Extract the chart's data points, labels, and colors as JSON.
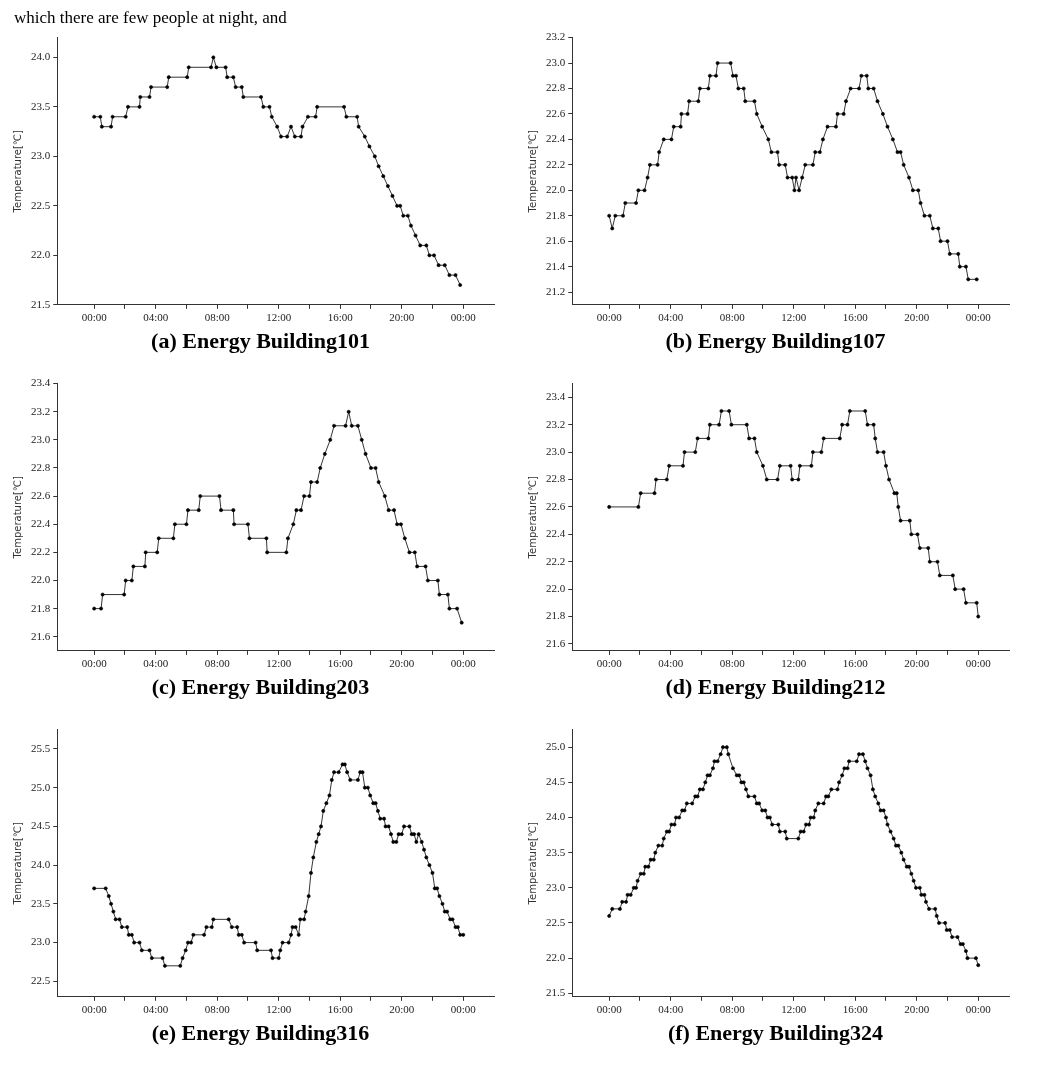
{
  "chart_data": [
    {
      "type": "line",
      "title": "(a) Energy Building101",
      "ylabel": "Temperature[℃]",
      "annotations": [
        "which there are few people at night, and"
      ],
      "color": "#000000",
      "marker": "circle",
      "x": [
        0,
        0.4,
        0.5,
        1.1,
        1.2,
        2.05,
        2.2,
        2.95,
        3.0,
        3.6,
        3.7,
        4.75,
        4.85,
        6.05,
        6.15,
        7.6,
        7.75,
        7.95,
        8.55,
        8.65,
        9.05,
        9.2,
        9.6,
        9.7,
        10.85,
        11.0,
        11.4,
        11.55,
        11.9,
        12.15,
        12.55,
        12.8,
        13.05,
        13.45,
        13.55,
        13.9,
        14.4,
        14.5,
        16.25,
        16.4,
        17.1,
        17.2,
        17.6,
        17.9,
        18.25,
        18.5,
        18.8,
        19.1,
        19.4,
        19.7,
        19.9,
        20.1,
        20.4,
        20.6,
        20.9,
        21.2,
        21.6,
        21.8,
        22.1,
        22.4,
        22.8,
        23.1,
        23.5,
        23.8
      ],
      "values": [
        23.4,
        23.4,
        23.3,
        23.3,
        23.4,
        23.4,
        23.5,
        23.5,
        23.6,
        23.6,
        23.7,
        23.7,
        23.8,
        23.8,
        23.9,
        23.9,
        24.0,
        23.9,
        23.9,
        23.8,
        23.8,
        23.7,
        23.7,
        23.6,
        23.6,
        23.5,
        23.5,
        23.4,
        23.3,
        23.2,
        23.2,
        23.3,
        23.2,
        23.2,
        23.3,
        23.4,
        23.4,
        23.5,
        23.5,
        23.4,
        23.4,
        23.3,
        23.2,
        23.1,
        23.0,
        22.9,
        22.8,
        22.7,
        22.6,
        22.5,
        22.5,
        22.4,
        22.4,
        22.3,
        22.2,
        22.1,
        22.1,
        22.0,
        22.0,
        21.9,
        21.9,
        21.8,
        21.8,
        21.7
      ],
      "xlim": [
        -2.4,
        26
      ],
      "xticks": [
        {
          "value": 0,
          "label": "00:00"
        },
        {
          "value": 2,
          "label": null
        },
        {
          "value": 4,
          "label": "04:00"
        },
        {
          "value": 6,
          "label": null
        },
        {
          "value": 8,
          "label": "08:00"
        },
        {
          "value": 10,
          "label": null
        },
        {
          "value": 12,
          "label": "12:00"
        },
        {
          "value": 14,
          "label": null
        },
        {
          "value": 16,
          "label": "16:00"
        },
        {
          "value": 18,
          "label": null
        },
        {
          "value": 20,
          "label": "20:00"
        },
        {
          "value": 22,
          "label": null
        },
        {
          "value": 24,
          "label": "00:00"
        }
      ],
      "ylim": [
        21.5,
        24.2
      ],
      "yticks": [
        21.5,
        {
          "value": 22,
          "label": "22.0"
        },
        22.5,
        {
          "value": 23,
          "label": "23.0"
        },
        23.5,
        {
          "value": 24,
          "label": "24.0"
        }
      ]
    },
    {
      "type": "line",
      "title": "(b) Energy Building107",
      "ylabel": "Temperature[℃]",
      "color": "#000000",
      "marker": "circle",
      "x": [
        0,
        0.2,
        0.4,
        0.9,
        1.05,
        1.75,
        1.9,
        2.3,
        2.5,
        2.65,
        3.15,
        3.25,
        3.55,
        4.05,
        4.2,
        4.65,
        4.7,
        5.1,
        5.2,
        5.8,
        5.9,
        6.45,
        6.55,
        6.95,
        7.05,
        7.9,
        8.05,
        8.25,
        8.4,
        8.75,
        8.85,
        9.45,
        9.6,
        9.95,
        10.35,
        10.55,
        10.95,
        11.05,
        11.45,
        11.6,
        11.9,
        12.05,
        12.15,
        12.35,
        12.55,
        12.75,
        13.25,
        13.4,
        13.7,
        13.9,
        14.2,
        14.75,
        14.85,
        15.25,
        15.4,
        15.7,
        16.25,
        16.4,
        16.75,
        16.85,
        17.2,
        17.45,
        17.8,
        18.1,
        18.45,
        18.75,
        18.95,
        19.15,
        19.5,
        19.75,
        20.1,
        20.25,
        20.5,
        20.85,
        21.05,
        21.4,
        21.55,
        22.0,
        22.15,
        22.7,
        22.8,
        23.2,
        23.35,
        23.9
      ],
      "values": [
        21.8,
        21.7,
        21.8,
        21.8,
        21.9,
        21.9,
        22.0,
        22.0,
        22.1,
        22.2,
        22.2,
        22.3,
        22.4,
        22.4,
        22.5,
        22.5,
        22.6,
        22.6,
        22.7,
        22.7,
        22.8,
        22.8,
        22.9,
        22.9,
        23.0,
        23.0,
        22.9,
        22.9,
        22.8,
        22.8,
        22.7,
        22.7,
        22.6,
        22.5,
        22.4,
        22.3,
        22.3,
        22.2,
        22.2,
        22.1,
        22.1,
        22.0,
        22.1,
        22.0,
        22.1,
        22.2,
        22.2,
        22.3,
        22.3,
        22.4,
        22.5,
        22.5,
        22.6,
        22.6,
        22.7,
        22.8,
        22.8,
        22.9,
        22.9,
        22.8,
        22.8,
        22.7,
        22.6,
        22.5,
        22.4,
        22.3,
        22.3,
        22.2,
        22.1,
        22.0,
        22.0,
        21.9,
        21.8,
        21.8,
        21.7,
        21.7,
        21.6,
        21.6,
        21.5,
        21.5,
        21.4,
        21.4,
        21.3,
        21.3
      ],
      "xlim": [
        -2.4,
        26
      ],
      "xticks": [
        {
          "value": 0,
          "label": "00:00"
        },
        {
          "value": 2,
          "label": null
        },
        {
          "value": 4,
          "label": "04:00"
        },
        {
          "value": 6,
          "label": null
        },
        {
          "value": 8,
          "label": "08:00"
        },
        {
          "value": 10,
          "label": null
        },
        {
          "value": 12,
          "label": "12:00"
        },
        {
          "value": 14,
          "label": null
        },
        {
          "value": 16,
          "label": "16:00"
        },
        {
          "value": 18,
          "label": null
        },
        {
          "value": 20,
          "label": "20:00"
        },
        {
          "value": 22,
          "label": null
        },
        {
          "value": 24,
          "label": "00:00"
        }
      ],
      "ylim": [
        21.1,
        23.2
      ],
      "yticks": [
        21.2,
        21.4,
        21.6,
        21.8,
        {
          "value": 22,
          "label": "22.0"
        },
        22.2,
        22.4,
        22.6,
        22.8,
        {
          "value": 23,
          "label": "23.0"
        },
        23.2
      ]
    },
    {
      "type": "line",
      "title": "(c) Energy Building203",
      "ylabel": "Temperature[℃]",
      "color": "#000000",
      "marker": "circle",
      "x": [
        0,
        0.45,
        0.55,
        1.95,
        2.05,
        2.45,
        2.55,
        3.3,
        3.35,
        4.1,
        4.2,
        5.15,
        5.25,
        6.0,
        6.1,
        6.8,
        6.9,
        8.15,
        8.25,
        9.05,
        9.1,
        10.0,
        10.1,
        11.2,
        11.25,
        12.5,
        12.6,
        12.95,
        13.15,
        13.45,
        13.65,
        14.0,
        14.1,
        14.5,
        14.7,
        15.0,
        15.35,
        15.6,
        16.35,
        16.55,
        16.75,
        17.15,
        17.4,
        17.65,
        18.0,
        18.3,
        18.5,
        18.9,
        19.15,
        19.5,
        19.7,
        19.95,
        20.2,
        20.5,
        20.85,
        21.0,
        21.55,
        21.7,
        22.35,
        22.45,
        23.0,
        23.1,
        23.6,
        23.9
      ],
      "values": [
        21.8,
        21.8,
        21.9,
        21.9,
        22.0,
        22.0,
        22.1,
        22.1,
        22.2,
        22.2,
        22.3,
        22.3,
        22.4,
        22.4,
        22.5,
        22.5,
        22.6,
        22.6,
        22.5,
        22.5,
        22.4,
        22.4,
        22.3,
        22.3,
        22.2,
        22.2,
        22.3,
        22.4,
        22.5,
        22.5,
        22.6,
        22.6,
        22.7,
        22.7,
        22.8,
        22.9,
        23.0,
        23.1,
        23.1,
        23.2,
        23.1,
        23.1,
        23.0,
        22.9,
        22.8,
        22.8,
        22.7,
        22.6,
        22.5,
        22.5,
        22.4,
        22.4,
        22.3,
        22.2,
        22.2,
        22.1,
        22.1,
        22.0,
        22.0,
        21.9,
        21.9,
        21.8,
        21.8,
        21.7
      ],
      "xlim": [
        -2.4,
        26
      ],
      "xticks": [
        {
          "value": 0,
          "label": "00:00"
        },
        {
          "value": 2,
          "label": null
        },
        {
          "value": 4,
          "label": "04:00"
        },
        {
          "value": 6,
          "label": null
        },
        {
          "value": 8,
          "label": "08:00"
        },
        {
          "value": 10,
          "label": null
        },
        {
          "value": 12,
          "label": "12:00"
        },
        {
          "value": 14,
          "label": null
        },
        {
          "value": 16,
          "label": "16:00"
        },
        {
          "value": 18,
          "label": null
        },
        {
          "value": 20,
          "label": "20:00"
        },
        {
          "value": 22,
          "label": null
        },
        {
          "value": 24,
          "label": "00:00"
        }
      ],
      "ylim": [
        21.5,
        23.4
      ],
      "yticks": [
        21.6,
        21.8,
        {
          "value": 22,
          "label": "22.0"
        },
        22.2,
        22.4,
        22.6,
        22.8,
        {
          "value": 23,
          "label": "23.0"
        },
        23.2,
        23.4
      ]
    },
    {
      "type": "line",
      "title": "(d) Energy Building212",
      "ylabel": "Temperature[℃]",
      "color": "#000000",
      "marker": "circle",
      "x": [
        0,
        1.9,
        2.05,
        2.95,
        3.05,
        3.75,
        3.9,
        4.8,
        4.9,
        5.6,
        5.75,
        6.45,
        6.55,
        7.15,
        7.3,
        7.8,
        7.95,
        8.95,
        9.1,
        9.45,
        9.6,
        10.0,
        10.25,
        10.95,
        11.1,
        11.8,
        11.9,
        12.3,
        12.4,
        13.15,
        13.25,
        13.8,
        13.95,
        15.0,
        15.15,
        15.5,
        15.65,
        16.65,
        16.8,
        17.2,
        17.3,
        17.45,
        17.85,
        18.0,
        18.2,
        18.55,
        18.7,
        18.8,
        18.95,
        19.55,
        19.65,
        20.05,
        20.2,
        20.75,
        20.85,
        21.35,
        21.5,
        22.35,
        22.5,
        23.05,
        23.2,
        23.9,
        24.0
      ],
      "values": [
        22.6,
        22.6,
        22.7,
        22.7,
        22.8,
        22.8,
        22.9,
        22.9,
        23.0,
        23.0,
        23.1,
        23.1,
        23.2,
        23.2,
        23.3,
        23.3,
        23.2,
        23.2,
        23.1,
        23.1,
        23.0,
        22.9,
        22.8,
        22.8,
        22.9,
        22.9,
        22.8,
        22.8,
        22.9,
        22.9,
        23.0,
        23.0,
        23.1,
        23.1,
        23.2,
        23.2,
        23.3,
        23.3,
        23.2,
        23.2,
        23.1,
        23.0,
        23.0,
        22.9,
        22.8,
        22.7,
        22.7,
        22.6,
        22.5,
        22.5,
        22.4,
        22.4,
        22.3,
        22.3,
        22.2,
        22.2,
        22.1,
        22.1,
        22.0,
        22.0,
        21.9,
        21.9,
        21.8
      ],
      "xlim": [
        -2.4,
        26
      ],
      "xticks": [
        {
          "value": 0,
          "label": "00:00"
        },
        {
          "value": 2,
          "label": null
        },
        {
          "value": 4,
          "label": "04:00"
        },
        {
          "value": 6,
          "label": null
        },
        {
          "value": 8,
          "label": "08:00"
        },
        {
          "value": 10,
          "label": null
        },
        {
          "value": 12,
          "label": "12:00"
        },
        {
          "value": 14,
          "label": null
        },
        {
          "value": 16,
          "label": "16:00"
        },
        {
          "value": 18,
          "label": null
        },
        {
          "value": 20,
          "label": "20:00"
        },
        {
          "value": 22,
          "label": null
        },
        {
          "value": 24,
          "label": "00:00"
        }
      ],
      "ylim": [
        21.55,
        23.5
      ],
      "yticks": [
        21.6,
        21.8,
        {
          "value": 22,
          "label": "22.0"
        },
        22.2,
        22.4,
        22.6,
        22.8,
        {
          "value": 23,
          "label": "23.0"
        },
        23.2,
        23.4
      ]
    },
    {
      "type": "line",
      "title": "(e) Energy Building316",
      "ylabel": "Temperature[℃]",
      "color": "#000000",
      "marker": "circle",
      "x": [
        0,
        0.75,
        0.95,
        1.1,
        1.25,
        1.4,
        1.65,
        1.8,
        2.15,
        2.25,
        2.45,
        2.6,
        2.95,
        3.1,
        3.6,
        3.75,
        4.45,
        4.6,
        5.6,
        5.75,
        5.95,
        6.1,
        6.3,
        6.45,
        7.15,
        7.3,
        7.65,
        7.75,
        8.75,
        8.95,
        9.3,
        9.4,
        9.6,
        9.75,
        10.5,
        10.6,
        11.5,
        11.6,
        12.0,
        12.1,
        12.25,
        12.65,
        12.8,
        12.9,
        13.1,
        13.3,
        13.4,
        13.65,
        13.75,
        13.95,
        14.1,
        14.25,
        14.45,
        14.6,
        14.75,
        14.9,
        15.1,
        15.3,
        15.45,
        15.6,
        15.9,
        16.15,
        16.3,
        16.45,
        16.65,
        17.15,
        17.3,
        17.45,
        17.6,
        17.8,
        17.95,
        18.15,
        18.3,
        18.45,
        18.6,
        18.85,
        18.95,
        19.15,
        19.3,
        19.45,
        19.65,
        19.8,
        20.0,
        20.15,
        20.5,
        20.65,
        20.8,
        20.95,
        21.1,
        21.3,
        21.45,
        21.6,
        21.8,
        22.0,
        22.15,
        22.3,
        22.45,
        22.65,
        22.8,
        22.95,
        23.15,
        23.3,
        23.5,
        23.65,
        23.8,
        24.0
      ],
      "values": [
        23.7,
        23.7,
        23.6,
        23.5,
        23.4,
        23.3,
        23.3,
        23.2,
        23.2,
        23.1,
        23.1,
        23.0,
        23.0,
        22.9,
        22.9,
        22.8,
        22.8,
        22.7,
        22.7,
        22.8,
        22.9,
        23.0,
        23.0,
        23.1,
        23.1,
        23.2,
        23.2,
        23.3,
        23.3,
        23.2,
        23.2,
        23.1,
        23.1,
        23.0,
        23.0,
        22.9,
        22.9,
        22.8,
        22.8,
        22.9,
        23.0,
        23.0,
        23.1,
        23.2,
        23.2,
        23.1,
        23.3,
        23.3,
        23.4,
        23.6,
        23.9,
        24.1,
        24.3,
        24.4,
        24.5,
        24.7,
        24.8,
        24.9,
        25.1,
        25.2,
        25.2,
        25.3,
        25.3,
        25.2,
        25.1,
        25.1,
        25.2,
        25.2,
        25.0,
        25.0,
        24.9,
        24.8,
        24.8,
        24.7,
        24.6,
        24.6,
        24.5,
        24.5,
        24.4,
        24.3,
        24.3,
        24.4,
        24.4,
        24.5,
        24.5,
        24.4,
        24.4,
        24.3,
        24.4,
        24.3,
        24.2,
        24.1,
        24.0,
        23.9,
        23.7,
        23.7,
        23.6,
        23.5,
        23.4,
        23.4,
        23.3,
        23.3,
        23.2,
        23.2,
        23.1,
        23.1
      ],
      "xlim": [
        -2.4,
        26
      ],
      "xticks": [
        {
          "value": 0,
          "label": "00:00"
        },
        {
          "value": 2,
          "label": null
        },
        {
          "value": 4,
          "label": "04:00"
        },
        {
          "value": 6,
          "label": null
        },
        {
          "value": 8,
          "label": "08:00"
        },
        {
          "value": 10,
          "label": null
        },
        {
          "value": 12,
          "label": "12:00"
        },
        {
          "value": 14,
          "label": null
        },
        {
          "value": 16,
          "label": "16:00"
        },
        {
          "value": 18,
          "label": null
        },
        {
          "value": 20,
          "label": "20:00"
        },
        {
          "value": 22,
          "label": null
        },
        {
          "value": 24,
          "label": "00:00"
        }
      ],
      "ylim": [
        22.3,
        25.75
      ],
      "yticks": [
        22.5,
        {
          "value": 23,
          "label": "23.0"
        },
        23.5,
        {
          "value": 24,
          "label": "24.0"
        },
        24.5,
        {
          "value": 25,
          "label": "25.0"
        },
        25.5
      ]
    },
    {
      "type": "line",
      "title": "(f) Energy Building324",
      "ylabel": "Temperature[℃]",
      "color": "#000000",
      "marker": "circle",
      "x": [
        0,
        0.2,
        0.7,
        0.85,
        1.1,
        1.2,
        1.4,
        1.6,
        1.75,
        1.85,
        2.05,
        2.25,
        2.35,
        2.55,
        2.7,
        2.9,
        3.0,
        3.2,
        3.45,
        3.55,
        3.75,
        3.9,
        4.05,
        4.25,
        4.35,
        4.55,
        4.75,
        4.9,
        5.05,
        5.4,
        5.6,
        5.75,
        5.9,
        6.1,
        6.25,
        6.4,
        6.55,
        6.75,
        6.85,
        7.05,
        7.25,
        7.4,
        7.65,
        7.75,
        8.05,
        8.3,
        8.45,
        8.6,
        8.75,
        8.9,
        9.05,
        9.45,
        9.6,
        9.75,
        9.95,
        10.15,
        10.3,
        10.45,
        10.6,
        11.0,
        11.1,
        11.45,
        11.55,
        12.3,
        12.45,
        12.65,
        12.8,
        13.0,
        13.1,
        13.3,
        13.4,
        13.6,
        13.95,
        14.1,
        14.25,
        14.45,
        14.85,
        14.95,
        15.15,
        15.3,
        15.5,
        15.6,
        16.1,
        16.25,
        16.5,
        16.65,
        16.8,
        17.0,
        17.15,
        17.3,
        17.5,
        17.65,
        17.85,
        18.0,
        18.1,
        18.3,
        18.5,
        18.65,
        18.8,
        19.0,
        19.15,
        19.35,
        19.5,
        19.65,
        19.8,
        19.95,
        20.2,
        20.3,
        20.5,
        20.6,
        20.8,
        21.2,
        21.3,
        21.45,
        21.85,
        21.95,
        22.15,
        22.3,
        22.65,
        22.85,
        23.0,
        23.2,
        23.3,
        23.85,
        24.0
      ],
      "values": [
        22.6,
        22.7,
        22.7,
        22.8,
        22.8,
        22.9,
        22.9,
        23.0,
        23.0,
        23.1,
        23.2,
        23.2,
        23.3,
        23.3,
        23.4,
        23.4,
        23.5,
        23.6,
        23.6,
        23.7,
        23.8,
        23.8,
        23.9,
        23.9,
        24.0,
        24.0,
        24.1,
        24.1,
        24.2,
        24.2,
        24.3,
        24.3,
        24.4,
        24.4,
        24.5,
        24.6,
        24.6,
        24.7,
        24.8,
        24.8,
        24.9,
        25.0,
        25.0,
        24.9,
        24.7,
        24.6,
        24.6,
        24.5,
        24.5,
        24.4,
        24.3,
        24.3,
        24.2,
        24.2,
        24.1,
        24.1,
        24.0,
        24.0,
        23.9,
        23.9,
        23.8,
        23.8,
        23.7,
        23.7,
        23.8,
        23.8,
        23.9,
        23.9,
        24.0,
        24.0,
        24.1,
        24.2,
        24.2,
        24.3,
        24.3,
        24.4,
        24.4,
        24.5,
        24.6,
        24.7,
        24.7,
        24.8,
        24.8,
        24.9,
        24.9,
        24.8,
        24.7,
        24.6,
        24.4,
        24.3,
        24.2,
        24.1,
        24.1,
        24.0,
        23.9,
        23.8,
        23.7,
        23.6,
        23.6,
        23.5,
        23.4,
        23.3,
        23.3,
        23.2,
        23.1,
        23.0,
        23.0,
        22.9,
        22.9,
        22.8,
        22.7,
        22.7,
        22.6,
        22.5,
        22.5,
        22.4,
        22.4,
        22.3,
        22.3,
        22.2,
        22.2,
        22.1,
        22.0,
        22.0,
        21.9
      ],
      "xlim": [
        -2.4,
        26
      ],
      "xticks": [
        {
          "value": 0,
          "label": "00:00"
        },
        {
          "value": 2,
          "label": null
        },
        {
          "value": 4,
          "label": "04:00"
        },
        {
          "value": 6,
          "label": null
        },
        {
          "value": 8,
          "label": "08:00"
        },
        {
          "value": 10,
          "label": null
        },
        {
          "value": 12,
          "label": "12:00"
        },
        {
          "value": 14,
          "label": null
        },
        {
          "value": 16,
          "label": "16:00"
        },
        {
          "value": 18,
          "label": null
        },
        {
          "value": 20,
          "label": "20:00"
        },
        {
          "value": 22,
          "label": null
        },
        {
          "value": 24,
          "label": "00:00"
        }
      ],
      "ylim": [
        21.45,
        25.25
      ],
      "yticks": [
        21.5,
        {
          "value": 22,
          "label": "22.0"
        },
        22.5,
        {
          "value": 23,
          "label": "23.0"
        },
        23.5,
        {
          "value": 24,
          "label": "24.0"
        },
        24.5,
        {
          "value": 25,
          "label": "25.0"
        }
      ]
    }
  ]
}
